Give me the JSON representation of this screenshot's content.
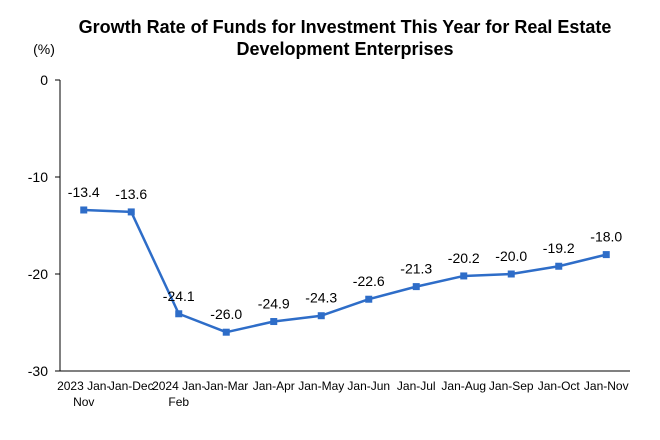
{
  "chart_data": {
    "type": "line",
    "title_lines": [
      "Growth Rate of Funds for Investment This Year for Real Estate",
      "Development Enterprises"
    ],
    "unit_label": "(%)",
    "categories": [
      [
        "2023 Jan-",
        "Nov"
      ],
      [
        "Jan-Dec"
      ],
      [
        "2024 Jan-",
        "Feb"
      ],
      [
        "Jan-Mar"
      ],
      [
        "Jan-Apr"
      ],
      [
        "Jan-May"
      ],
      [
        "Jan-Jun"
      ],
      [
        "Jan-Jul"
      ],
      [
        "Jan-Aug"
      ],
      [
        "Jan-Sep"
      ],
      [
        "Jan-Oct"
      ],
      [
        "Jan-Nov"
      ]
    ],
    "values": [
      -13.4,
      -13.6,
      -24.1,
      -26.0,
      -24.9,
      -24.3,
      -22.6,
      -21.3,
      -20.2,
      -20.0,
      -19.2,
      -18.0
    ],
    "data_labels": [
      "-13.4",
      "-13.6",
      "-24.1",
      "-26.0",
      "-24.9",
      "-24.3",
      "-22.6",
      "-21.3",
      "-20.2",
      "-20.0",
      "-19.2",
      "-18.0"
    ],
    "y_ticks": [
      0,
      -10,
      -20,
      -30
    ],
    "y_tick_labels": [
      "0",
      "-10",
      "-20",
      "-30"
    ],
    "ylim": [
      -30,
      0
    ],
    "grid": false,
    "legend": "none",
    "line_color": "#2E6DC8",
    "axis_color": "#000000"
  }
}
